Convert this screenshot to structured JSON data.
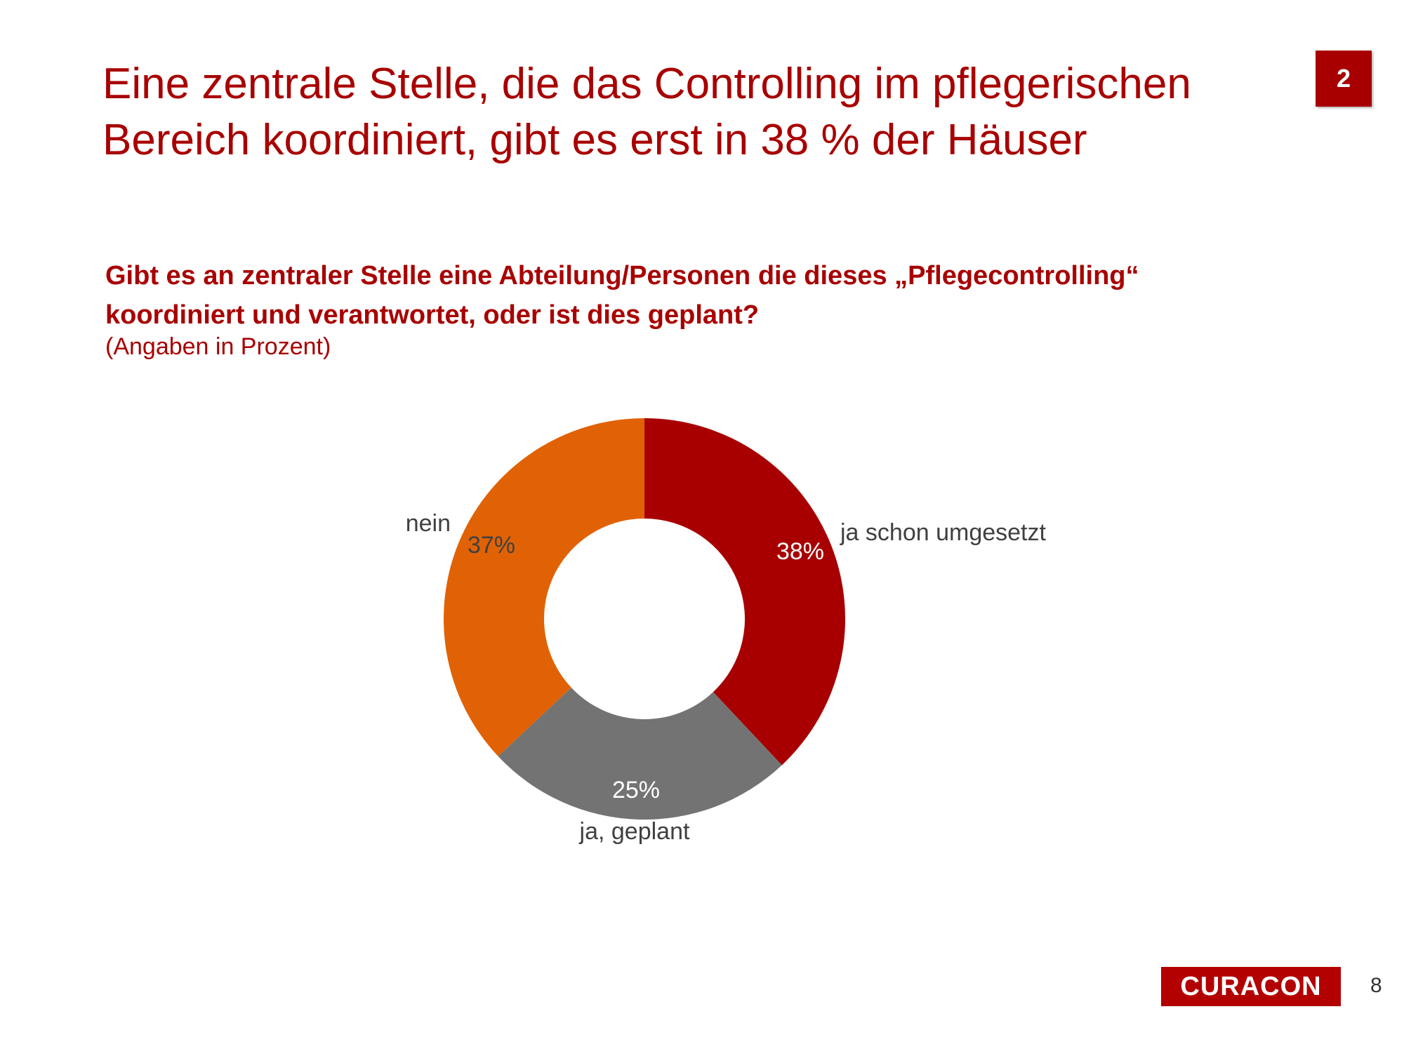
{
  "slide": {
    "headline_line1": "Eine zentrale Stelle, die das Controlling im pflegerischen",
    "headline_line2": "Bereich koordiniert, gibt es erst in 38 % der Häuser",
    "chapter_badge": "2",
    "question_line1": "Gibt es an zentraler Stelle eine Abteilung/Personen die dieses „Pflegecontrolling“",
    "question_line2": "koordiniert und verantwortet, oder ist dies geplant?",
    "unit_note": "(Angaben in Prozent)",
    "logo_text": "CURACON",
    "page_number": "8"
  },
  "chart_data": {
    "type": "pie",
    "variant": "donut",
    "slices": [
      {
        "label": "ja schon umgesetzt",
        "value": 38,
        "value_label": "38%",
        "color": "#a80000"
      },
      {
        "label": "ja, geplant",
        "value": 25,
        "value_label": "25%",
        "color": "#737373"
      },
      {
        "label": "nein",
        "value": 37,
        "value_label": "37%",
        "color": "#e06205"
      }
    ],
    "start_angle": "12 o'clock",
    "direction": "clockwise",
    "legend": "none",
    "category_label_color": "#404040"
  }
}
